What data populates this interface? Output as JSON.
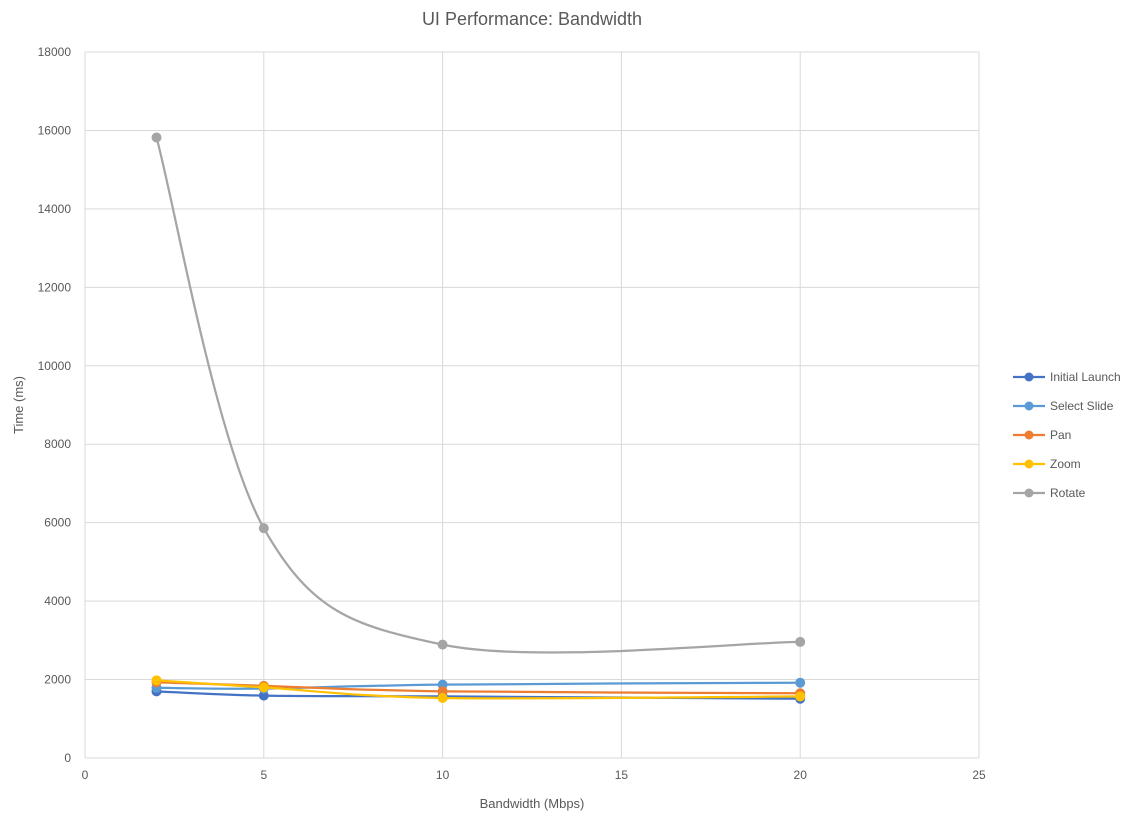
{
  "chart_data": {
    "type": "line",
    "title": "UI Performance: Bandwidth",
    "xlabel": "Bandwidth (Mbps)",
    "ylabel": "Time (ms)",
    "xlim": [
      0,
      25
    ],
    "ylim": [
      0,
      18000
    ],
    "xticks": [
      0,
      5,
      10,
      15,
      20,
      25
    ],
    "yticks": [
      0,
      2000,
      4000,
      6000,
      8000,
      10000,
      12000,
      14000,
      16000,
      18000
    ],
    "grid": true,
    "smooth": true,
    "legend_position": "right",
    "series": [
      {
        "name": "Initial Launch",
        "color": "#4472C4",
        "x": [
          2,
          5,
          10,
          20
        ],
        "y": [
          1700,
          1590,
          1570,
          1510
        ]
      },
      {
        "name": "Select Slide",
        "color": "#5B9BD5",
        "x": [
          2,
          5,
          10,
          20
        ],
        "y": [
          1790,
          1770,
          1870,
          1920
        ]
      },
      {
        "name": "Pan",
        "color": "#ED7D31",
        "x": [
          2,
          5,
          10,
          20
        ],
        "y": [
          1930,
          1840,
          1700,
          1650
        ]
      },
      {
        "name": "Zoom",
        "color": "#FFC000",
        "x": [
          2,
          5,
          10,
          20
        ],
        "y": [
          1980,
          1800,
          1530,
          1570
        ]
      },
      {
        "name": "Rotate",
        "color": "#A5A5A5",
        "x": [
          2,
          5,
          10,
          20
        ],
        "y": [
          15820,
          5860,
          2890,
          2960
        ]
      }
    ]
  }
}
